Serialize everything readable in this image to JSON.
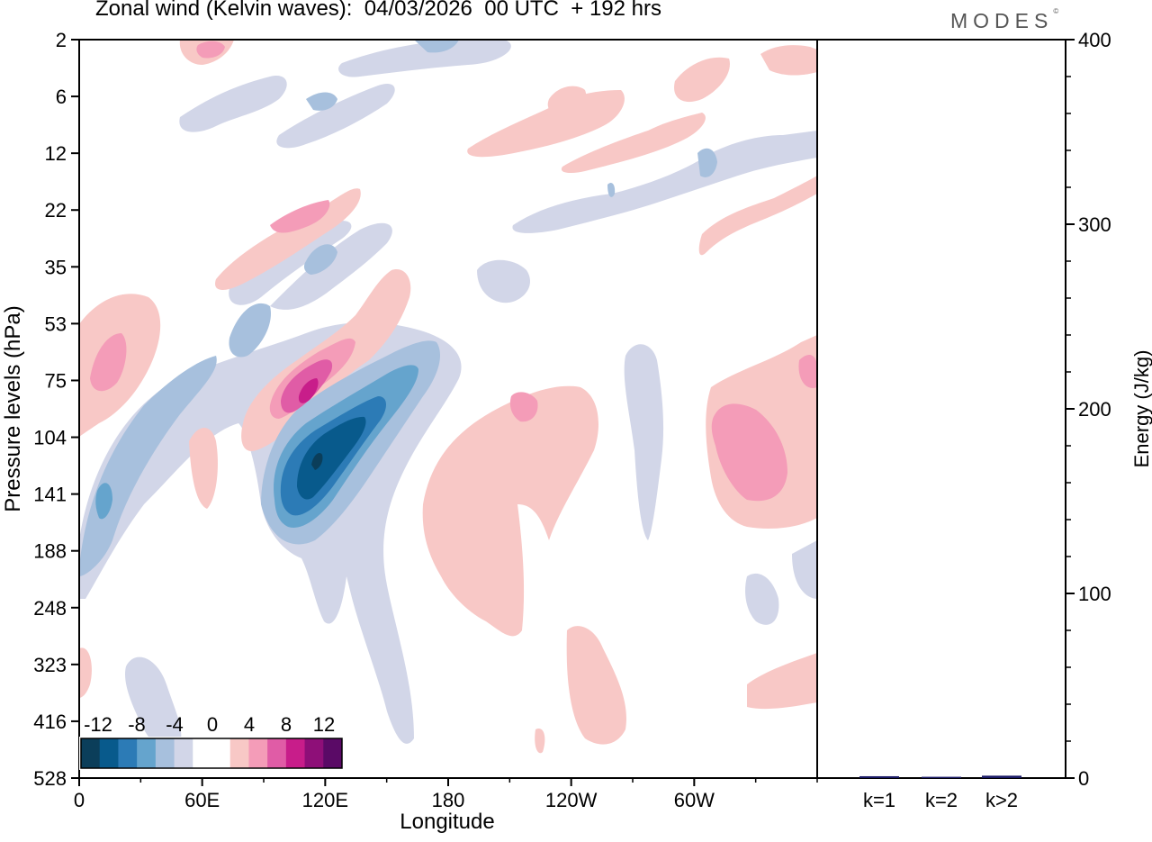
{
  "header": {
    "title": "Zonal wind (Kelvin waves):  04/03/2026  00 UTC  + 192 hrs",
    "brand": "MODES",
    "brand_mark": "©"
  },
  "colors": {
    "neg": [
      "#0b3e5a",
      "#085a8c",
      "#2c7bb6",
      "#65a4cd",
      "#a7c0dd",
      "#d2d6e8"
    ],
    "neutral": "#ffffff",
    "pos": [
      "#f8c8c6",
      "#f49cb8",
      "#e05ca6",
      "#c81d8a",
      "#8e0f78",
      "#5a0a66"
    ]
  },
  "chart_data": [
    {
      "type": "heatmap",
      "variable": "Zonal wind (Kelvin waves)",
      "xlabel": "Longitude",
      "ylabel": "Pressure levels (hPa)",
      "x_ticks": [
        "0",
        "60E",
        "120E",
        "180",
        "120W",
        "60W"
      ],
      "y_ticks": [
        "2",
        "6",
        "12",
        "22",
        "35",
        "53",
        "75",
        "104",
        "141",
        "188",
        "248",
        "323",
        "416",
        "528"
      ],
      "colorbar_labels": [
        "-12",
        "-8",
        "-4",
        "0",
        "4",
        "8",
        "12"
      ],
      "colorbar_levels": [
        -16,
        -14,
        -12,
        -10,
        -8,
        -6,
        -4,
        -2,
        2,
        4,
        6,
        8,
        10,
        12,
        14,
        16
      ],
      "features": [
        {
          "name": "easterly-core-120E",
          "lon": 117,
          "lev": 110,
          "value": -14
        },
        {
          "name": "westerly-core-115E",
          "lon": 113,
          "lev": 75,
          "value": 9
        },
        {
          "name": "westerly-west-pacific",
          "lon": 8,
          "lev": 75,
          "value": 6
        },
        {
          "name": "westerly-east-pacific",
          "lon": 300,
          "lev": 120,
          "value": 5
        },
        {
          "name": "westerly-dateline",
          "lon": 195,
          "lev": 190,
          "value": 3
        }
      ]
    },
    {
      "type": "bar",
      "ylabel": "Energy (J/kg)",
      "categories": [
        "k=1",
        "k=2",
        "k>2"
      ],
      "values": [
        0.5,
        0.2,
        0.8
      ],
      "ylim": [
        0,
        400
      ],
      "y_ticks": [
        "0",
        "100",
        "200",
        "300",
        "400"
      ]
    }
  ]
}
